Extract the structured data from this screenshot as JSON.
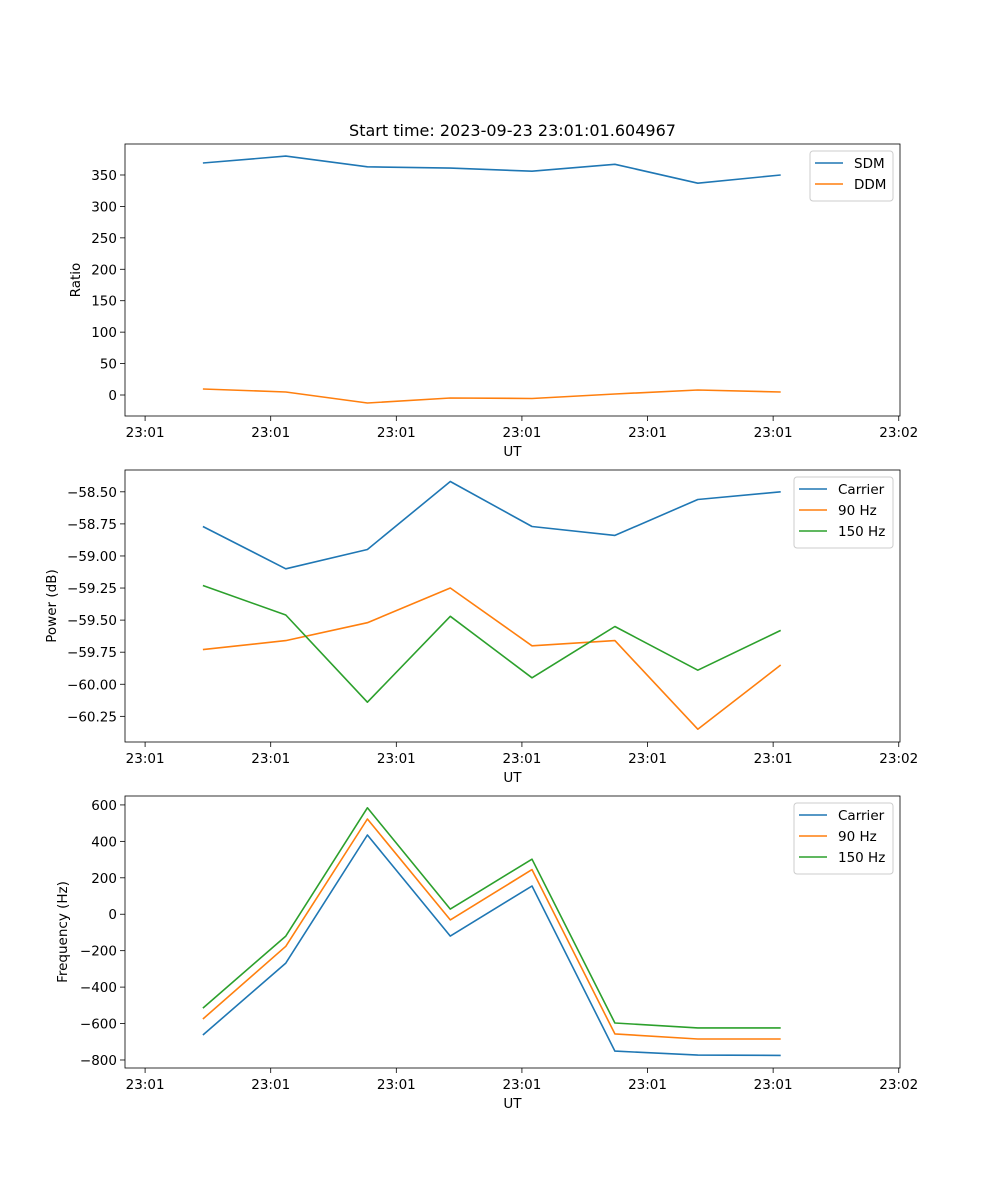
{
  "chart_data": [
    {
      "type": "line",
      "title": "Start time: 2023-09-23 23:01:01.604967",
      "xlabel": "UT",
      "ylabel": "Ratio",
      "x_seconds": [
        4.6,
        11.2,
        17.7,
        24.3,
        30.8,
        37.4,
        44.0,
        50.6
      ],
      "xlim": [
        -1.6,
        60.1
      ],
      "xticks": [
        0,
        10,
        20,
        30,
        40,
        50,
        60
      ],
      "xtick_labels": [
        "23:01",
        "23:01",
        "23:01",
        "23:01",
        "23:01",
        "23:01",
        "23:02"
      ],
      "ylim": [
        -33.4,
        399.3
      ],
      "yticks": [
        0,
        50,
        100,
        150,
        200,
        250,
        300,
        350
      ],
      "ytick_labels": [
        "0",
        "50",
        "100",
        "150",
        "200",
        "250",
        "300",
        "350"
      ],
      "legend_position": "top-right",
      "series": [
        {
          "name": "SDM",
          "color": "#1f77b4",
          "values": [
            369,
            380,
            363,
            361,
            356,
            367,
            337,
            350
          ]
        },
        {
          "name": "DDM",
          "color": "#ff7f0e",
          "values": [
            9.5,
            4.8,
            -12.7,
            -4.8,
            -5.6,
            1.6,
            8,
            4.8
          ]
        }
      ]
    },
    {
      "type": "line",
      "title": "",
      "xlabel": "UT",
      "ylabel": "Power (dB)",
      "x_seconds": [
        4.6,
        11.2,
        17.7,
        24.3,
        30.8,
        37.4,
        44.0,
        50.6
      ],
      "xlim": [
        -1.6,
        60.1
      ],
      "xticks": [
        0,
        10,
        20,
        30,
        40,
        50,
        60
      ],
      "xtick_labels": [
        "23:01",
        "23:01",
        "23:01",
        "23:01",
        "23:01",
        "23:01",
        "23:02"
      ],
      "ylim": [
        -60.45,
        -58.33
      ],
      "yticks": [
        -60.25,
        -60.0,
        -59.75,
        -59.5,
        -59.25,
        -59.0,
        -58.75,
        -58.5
      ],
      "ytick_labels": [
        "−60.25",
        "−60.00",
        "−59.75",
        "−59.50",
        "−59.25",
        "−59.00",
        "−58.75",
        "−58.50"
      ],
      "legend_position": "top-right",
      "series": [
        {
          "name": "Carrier",
          "color": "#1f77b4",
          "values": [
            -58.77,
            -59.1,
            -58.95,
            -58.42,
            -58.77,
            -58.84,
            -58.56,
            -58.5
          ]
        },
        {
          "name": "90 Hz",
          "color": "#ff7f0e",
          "values": [
            -59.73,
            -59.66,
            -59.52,
            -59.25,
            -59.7,
            -59.66,
            -60.35,
            -59.85
          ]
        },
        {
          "name": "150 Hz",
          "color": "#2ca02c",
          "values": [
            -59.23,
            -59.46,
            -60.14,
            -59.47,
            -59.95,
            -59.55,
            -59.89,
            -59.58
          ]
        }
      ]
    },
    {
      "type": "line",
      "title": "",
      "xlabel": "UT",
      "ylabel": "Frequency (Hz)",
      "x_seconds": [
        4.6,
        11.2,
        17.7,
        24.3,
        30.8,
        37.4,
        44.0,
        50.6
      ],
      "xlim": [
        -1.6,
        60.1
      ],
      "xticks": [
        0,
        10,
        20,
        30,
        40,
        50,
        60
      ],
      "xtick_labels": [
        "23:01",
        "23:01",
        "23:01",
        "23:01",
        "23:01",
        "23:01",
        "23:02"
      ],
      "ylim": [
        -844,
        649
      ],
      "yticks": [
        -800,
        -600,
        -400,
        -200,
        0,
        200,
        400,
        600
      ],
      "ytick_labels": [
        "−800",
        "−600",
        "−400",
        "−200",
        "0",
        "200",
        "400",
        "600"
      ],
      "legend_position": "top-right",
      "series": [
        {
          "name": "Carrier",
          "color": "#1f77b4",
          "values": [
            -663,
            -268,
            435,
            -120,
            155,
            -751,
            -773,
            -775
          ]
        },
        {
          "name": "90 Hz",
          "color": "#ff7f0e",
          "values": [
            -575,
            -176,
            523,
            -31,
            245,
            -657,
            -685,
            -685
          ]
        },
        {
          "name": "150 Hz",
          "color": "#2ca02c",
          "values": [
            -515,
            -120,
            584,
            28,
            302,
            -597,
            -624,
            -624
          ]
        }
      ]
    }
  ]
}
